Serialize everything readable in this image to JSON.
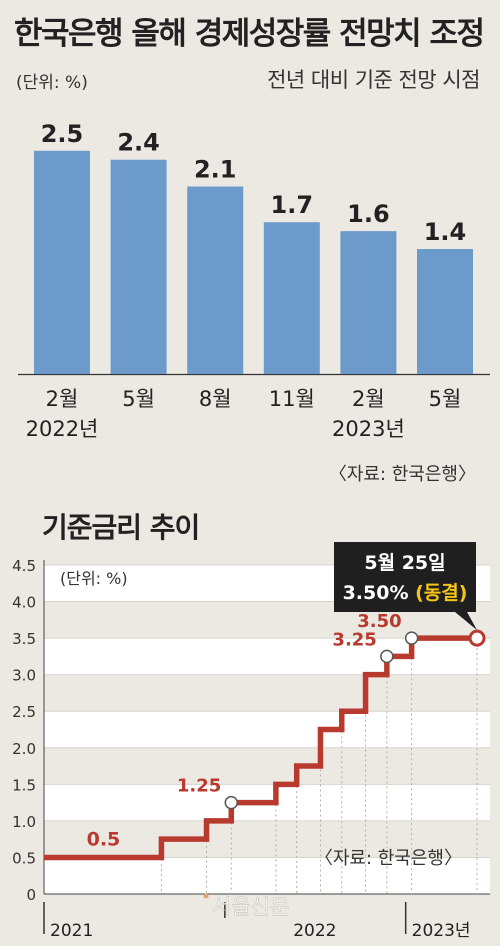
{
  "chart_data": [
    {
      "type": "bar",
      "title": "한국은행 올해 경제성장률 전망치 조정",
      "unit": "(단위: %)",
      "subtitle": "전년 대비 기준 전망 시점",
      "categories": [
        "2월",
        "5월",
        "8월",
        "11월",
        "2월",
        "5월"
      ],
      "year_labels": [
        "2022년",
        "",
        "",
        "",
        "2023년",
        ""
      ],
      "values": [
        2.5,
        2.4,
        2.1,
        1.7,
        1.6,
        1.4
      ],
      "value_labels": [
        "2.5",
        "2.4",
        "2.1",
        "1.7",
        "1.6",
        "1.4"
      ],
      "ylim": [
        0,
        2.8
      ],
      "bar_color": "#6b9acb",
      "source": "〈자료: 한국은행〉"
    },
    {
      "type": "line",
      "title": "기준금리 추이",
      "unit": "(단위: %)",
      "yticks": [
        "0",
        "0.5",
        "1.0",
        "1.5",
        "2.0",
        "2.5",
        "3.0",
        "3.5",
        "4.0",
        "4.5"
      ],
      "ylim": [
        0,
        4.5
      ],
      "x_labels": [
        "2021",
        "2022",
        "2023년"
      ],
      "x_label_dates": [
        "2021-01-01",
        "2022-01-01",
        "2023-01-01"
      ],
      "xlim": [
        "2021-01-01",
        "2023-05-31"
      ],
      "points": [
        {
          "x": "2021-01-01",
          "y": 0.5
        },
        {
          "x": "2021-08-26",
          "y": 0.75
        },
        {
          "x": "2021-11-25",
          "y": 1.0
        },
        {
          "x": "2022-01-14",
          "y": 1.25
        },
        {
          "x": "2022-04-14",
          "y": 1.5
        },
        {
          "x": "2022-05-26",
          "y": 1.75
        },
        {
          "x": "2022-07-13",
          "y": 2.25
        },
        {
          "x": "2022-08-25",
          "y": 2.5
        },
        {
          "x": "2022-10-12",
          "y": 3.0
        },
        {
          "x": "2022-11-24",
          "y": 3.25
        },
        {
          "x": "2023-01-13",
          "y": 3.5
        },
        {
          "x": "2023-05-25",
          "y": 3.5
        }
      ],
      "annotations": [
        {
          "x": "2021-05-01",
          "y": 0.5,
          "text": "0.5",
          "marker": false
        },
        {
          "x": "2022-01-14",
          "y": 1.25,
          "text": "1.25",
          "marker": true
        },
        {
          "x": "2022-11-24",
          "y": 3.25,
          "text": "3.25",
          "marker": true
        },
        {
          "x": "2023-01-13",
          "y": 3.5,
          "text": "3.50",
          "marker": true
        }
      ],
      "callout": {
        "date": "5월 25일",
        "rate": "3.50%",
        "status": "(동결)"
      },
      "line_color": "#b83a2e",
      "source": "〈자료: 한국은행〉"
    }
  ],
  "watermark": "서울신문"
}
